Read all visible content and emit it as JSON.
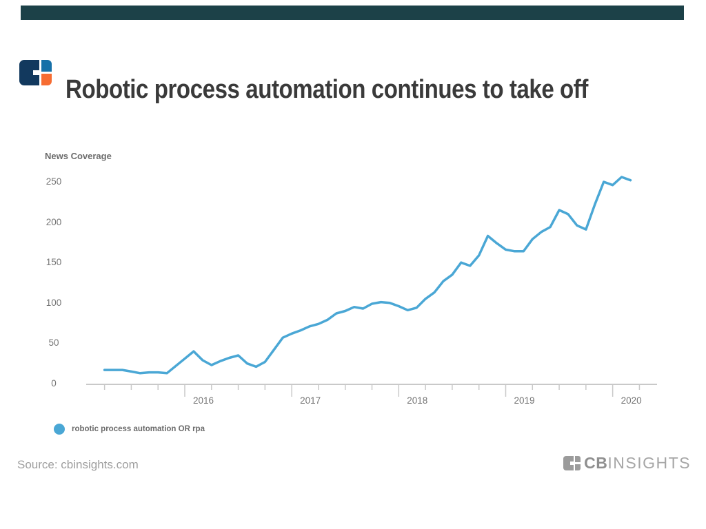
{
  "colors": {
    "top_bar": "#1c4148",
    "logo_navy": "#12395e",
    "logo_blue": "#1670a8",
    "logo_orange": "#f66c32",
    "title_text": "#3a3a3a",
    "axis_text": "#757575",
    "label_text": "#6b6b6b",
    "muted_text": "#9e9e9e",
    "axis_line": "#c9c9c9",
    "line_blue": "#4aa7d5"
  },
  "header": {
    "title": "Robotic process automation continues to take off"
  },
  "chart_data": {
    "type": "line",
    "axis_title": "News Coverage",
    "grid": false,
    "legend_position": "bottom-left",
    "ylim": [
      0,
      250
    ],
    "yticks": [
      0,
      50,
      100,
      150,
      200,
      250
    ],
    "xticks": [
      "2016",
      "2017",
      "2018",
      "2019",
      "2020"
    ],
    "series": [
      {
        "name": "robotic process automation OR rpa",
        "color": "#4aa7d5",
        "x": [
          "2015-04",
          "2015-05",
          "2015-06",
          "2015-07",
          "2015-08",
          "2015-09",
          "2015-10",
          "2015-11",
          "2015-12",
          "2016-01",
          "2016-02",
          "2016-03",
          "2016-04",
          "2016-05",
          "2016-06",
          "2016-07",
          "2016-08",
          "2016-09",
          "2016-10",
          "2016-11",
          "2016-12",
          "2017-01",
          "2017-02",
          "2017-03",
          "2017-04",
          "2017-05",
          "2017-06",
          "2017-07",
          "2017-08",
          "2017-09",
          "2017-10",
          "2017-11",
          "2017-12",
          "2018-01",
          "2018-02",
          "2018-03",
          "2018-04",
          "2018-05",
          "2018-06",
          "2018-07",
          "2018-08",
          "2018-09",
          "2018-10",
          "2018-11",
          "2018-12",
          "2019-01",
          "2019-02",
          "2019-03",
          "2019-04",
          "2019-05",
          "2019-06",
          "2019-07",
          "2019-08",
          "2019-09",
          "2019-10",
          "2019-11",
          "2019-12",
          "2020-01",
          "2020-02",
          "2020-03"
        ],
        "values": [
          17,
          17,
          17,
          15,
          13,
          14,
          14,
          13,
          22,
          31,
          40,
          29,
          23,
          28,
          32,
          35,
          25,
          21,
          27,
          42,
          57,
          62,
          66,
          71,
          74,
          79,
          87,
          90,
          95,
          93,
          99,
          101,
          100,
          96,
          91,
          94,
          105,
          113,
          127,
          135,
          150,
          146,
          159,
          183,
          174,
          166,
          164,
          164,
          179,
          188,
          194,
          215,
          210,
          196,
          191,
          222,
          250,
          246,
          256,
          252
        ]
      }
    ]
  },
  "footer": {
    "source": "Source: cbinsights.com",
    "brand_cb": "CB",
    "brand_insights": "INSIGHTS"
  }
}
